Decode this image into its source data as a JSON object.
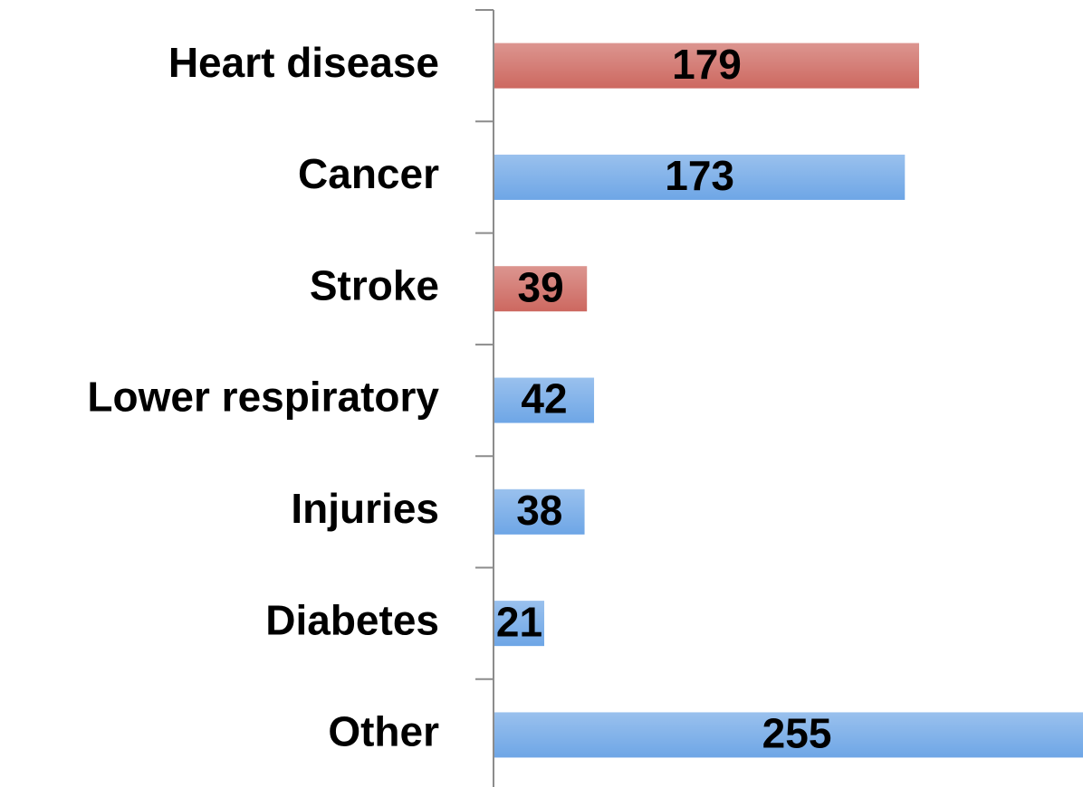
{
  "chart_data": {
    "type": "bar",
    "orientation": "horizontal",
    "categories": [
      "Heart disease",
      "Cancer",
      "Stroke",
      "Lower respiratory",
      "Injuries",
      "Diabetes",
      "Other"
    ],
    "values": [
      179,
      173,
      39,
      42,
      38,
      21,
      255
    ],
    "colors": [
      "#cd6860",
      "#6ea6e6",
      "#cd6860",
      "#6ea6e6",
      "#6ea6e6",
      "#6ea6e6",
      "#6ea6e6"
    ]
  }
}
